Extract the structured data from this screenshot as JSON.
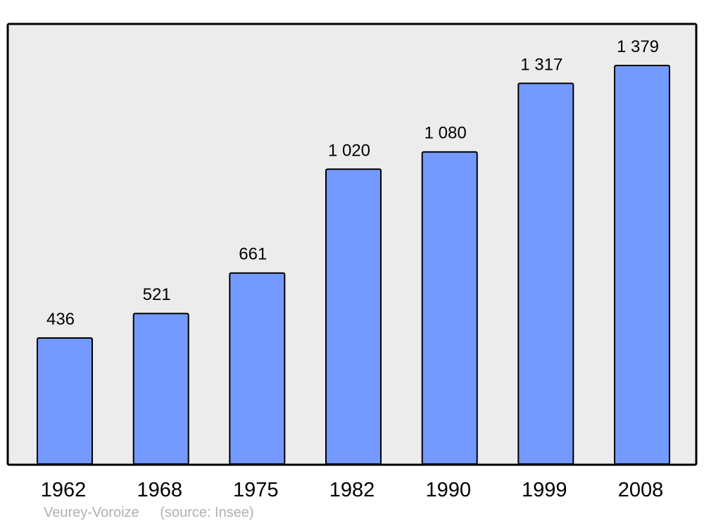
{
  "chart_data": {
    "type": "bar",
    "categories": [
      "1962",
      "1968",
      "1975",
      "1982",
      "1990",
      "1999",
      "2008"
    ],
    "values": [
      436,
      521,
      661,
      1020,
      1080,
      1317,
      1379
    ],
    "value_labels": [
      "436",
      "521",
      "661",
      "1 020",
      "1 080",
      "1 317",
      "1 379"
    ],
    "ylim": [
      0,
      1500
    ],
    "grid": false,
    "legend": "none",
    "title": "",
    "xlabel": "",
    "ylabel": ""
  },
  "caption": {
    "place": "Veurey-Voroize",
    "source": "(source: Insee)"
  },
  "colors": {
    "bar_fill": "#7499ff",
    "bar_stroke": "#000000",
    "plot_background": "#ececec",
    "caption_text": "#b0b0b0"
  }
}
